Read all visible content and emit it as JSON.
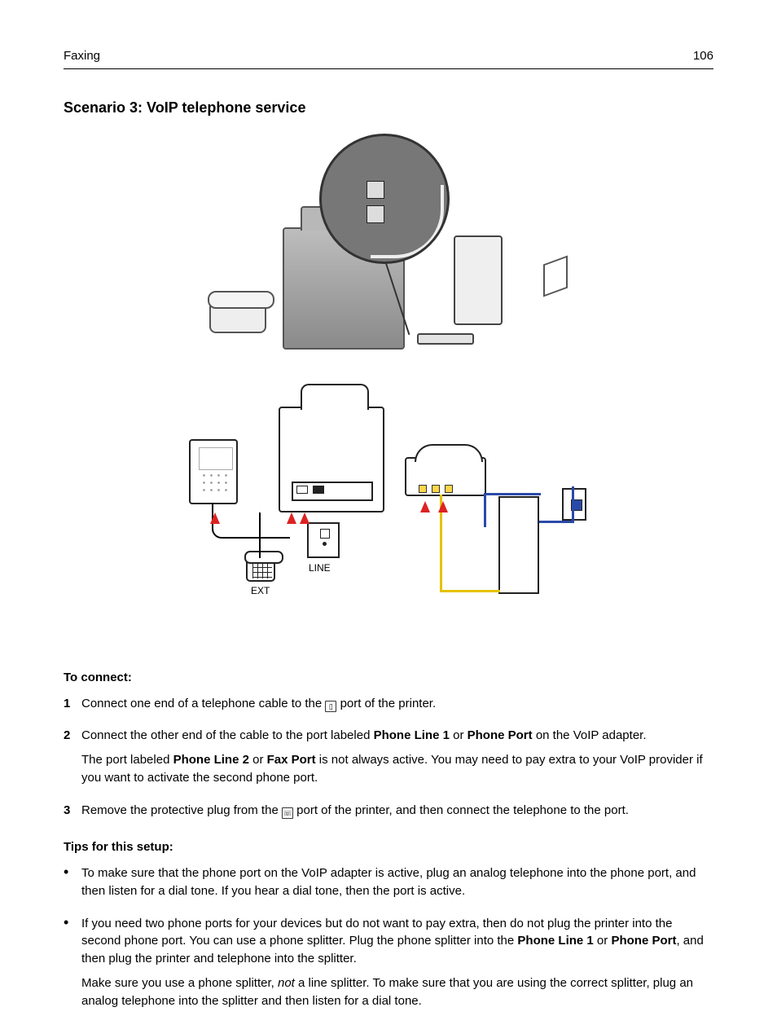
{
  "header": {
    "section": "Faxing",
    "page": "106"
  },
  "title": "Scenario 3: VoIP telephone service",
  "diagram_labels": {
    "line": "LINE",
    "ext": "EXT"
  },
  "colors": {
    "text": "#000000",
    "rule": "#000000",
    "arrow_red": "#d22222",
    "led_yellow": "#ffd54a",
    "wire_yellow": "#e6c200",
    "wire_blue": "#2a4aa8",
    "device_gray_dark": "#8a8a8a",
    "device_gray_light": "#e8e8e8"
  },
  "to_connect_label": "To connect:",
  "steps": [
    {
      "n": "1",
      "parts": [
        {
          "t": "Connect one end of a telephone cable to the "
        },
        {
          "icon": "line-port-icon"
        },
        {
          "t": " port of the printer."
        }
      ]
    },
    {
      "n": "2",
      "parts": [
        {
          "t": "Connect the other end of the cable to the port labeled "
        },
        {
          "b": "Phone Line 1"
        },
        {
          "t": " or "
        },
        {
          "b": "Phone Port"
        },
        {
          "t": " on the VoIP adapter."
        }
      ],
      "after": [
        {
          "t": "The port labeled "
        },
        {
          "b": "Phone Line 2"
        },
        {
          "t": " or "
        },
        {
          "b": "Fax Port"
        },
        {
          "t": " is not always active. You may need to pay extra to your VoIP provider if you want to activate the second phone port."
        }
      ]
    },
    {
      "n": "3",
      "parts": [
        {
          "t": "Remove the protective plug from the "
        },
        {
          "icon": "ext-port-icon"
        },
        {
          "t": " port of the printer, and then connect the telephone to the port."
        }
      ]
    }
  ],
  "tips_label": "Tips for this setup:",
  "tips": [
    {
      "paras": [
        [
          {
            "t": "To make sure that the phone port on the VoIP adapter is active, plug an analog telephone into the phone port, and then listen for a dial tone. If you hear a dial tone, then the port is active."
          }
        ]
      ]
    },
    {
      "paras": [
        [
          {
            "t": "If you need two phone ports for your devices but do not want to pay extra, then do not plug the printer into the second phone port. You can use a phone splitter. Plug the phone splitter into the "
          },
          {
            "b": "Phone Line 1"
          },
          {
            "t": " or "
          },
          {
            "b": "Phone Port"
          },
          {
            "t": ", and then plug the printer and telephone into the splitter."
          }
        ],
        [
          {
            "t": "Make sure you use a phone splitter, "
          },
          {
            "i": "not"
          },
          {
            "t": " a line splitter. To make sure that you are using the correct splitter, plug an analog telephone into the splitter and then listen for a dial tone."
          }
        ]
      ]
    }
  ]
}
